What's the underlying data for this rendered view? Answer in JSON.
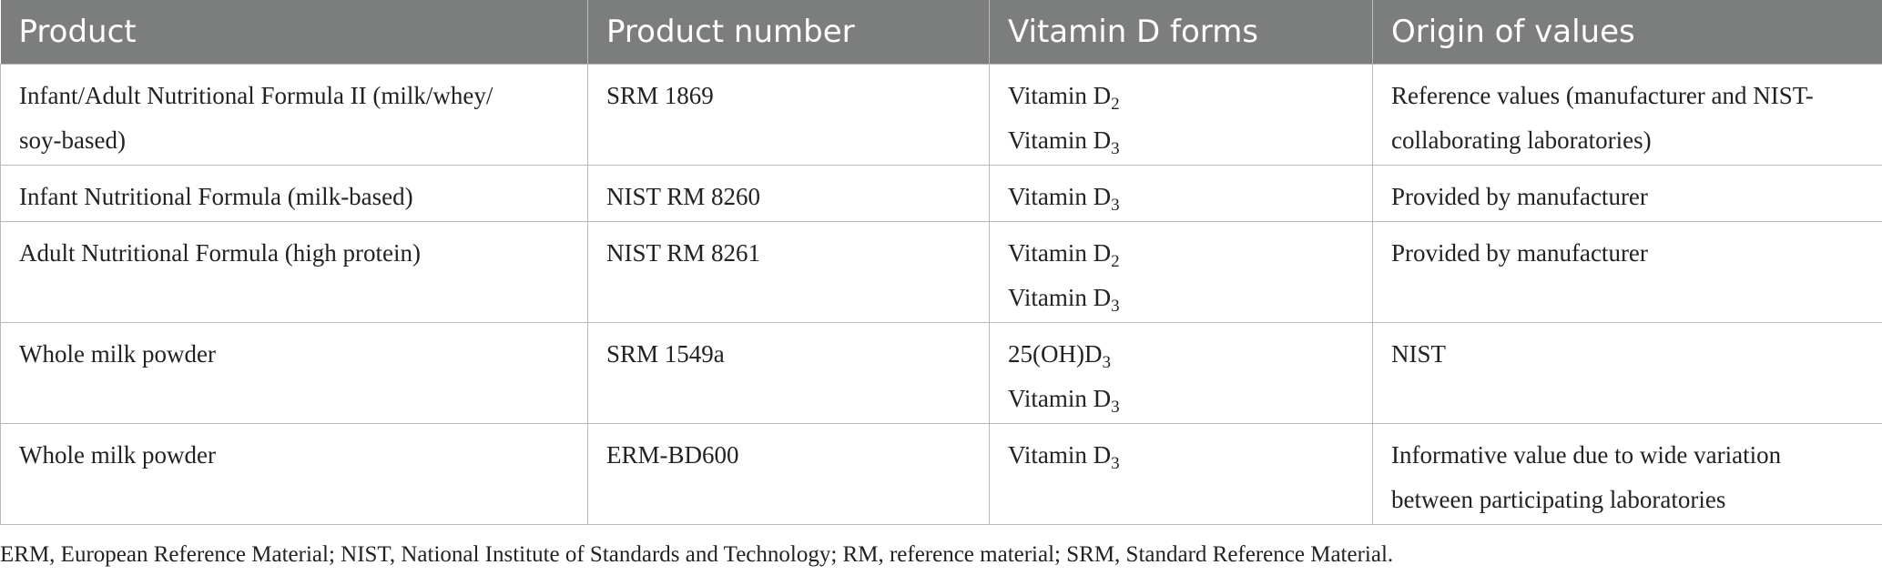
{
  "table": {
    "headers": [
      "Product",
      "Product number",
      "Vitamin D forms",
      "Origin of values"
    ],
    "rows": [
      {
        "product": "Infant/Adult Nutritional Formula II (milk/whey/soy-based)",
        "product_lines": [
          "Infant/Adult Nutritional Formula II (milk/whey/",
          "soy-based)"
        ],
        "number": "SRM 1869",
        "forms": [
          {
            "base": "Vitamin D",
            "sub": "2"
          },
          {
            "base": "Vitamin D",
            "sub": "3"
          }
        ],
        "origin": "Reference values (manufacturer and NIST-collaborating laboratories)",
        "origin_lines": [
          "Reference values (manufacturer and NIST-",
          "collaborating laboratories)"
        ]
      },
      {
        "product": "Infant Nutritional Formula (milk-based)",
        "number": "NIST RM 8260",
        "forms": [
          {
            "base": "Vitamin D",
            "sub": "3"
          }
        ],
        "origin": "Provided by manufacturer"
      },
      {
        "product": "Adult Nutritional Formula (high protein)",
        "number": "NIST RM 8261",
        "forms": [
          {
            "base": "Vitamin D",
            "sub": "2"
          },
          {
            "base": "Vitamin D",
            "sub": "3"
          }
        ],
        "origin": "Provided by manufacturer"
      },
      {
        "product": "Whole milk powder",
        "number": "SRM 1549a",
        "forms": [
          {
            "base": "25(OH)D",
            "sub": "3"
          },
          {
            "base": "Vitamin D",
            "sub": "3"
          }
        ],
        "origin": "NIST"
      },
      {
        "product": "Whole milk powder",
        "number": "ERM-BD600",
        "forms": [
          {
            "base": "Vitamin D",
            "sub": "3"
          }
        ],
        "origin": "Informative value due to wide variation between participating laboratories",
        "origin_lines": [
          "Informative value due to wide variation",
          "between participating laboratories"
        ]
      }
    ]
  },
  "footnote": "ERM, European Reference Material; NIST, National Institute of Standards and Technology; RM, reference material; SRM, Standard Reference Material."
}
